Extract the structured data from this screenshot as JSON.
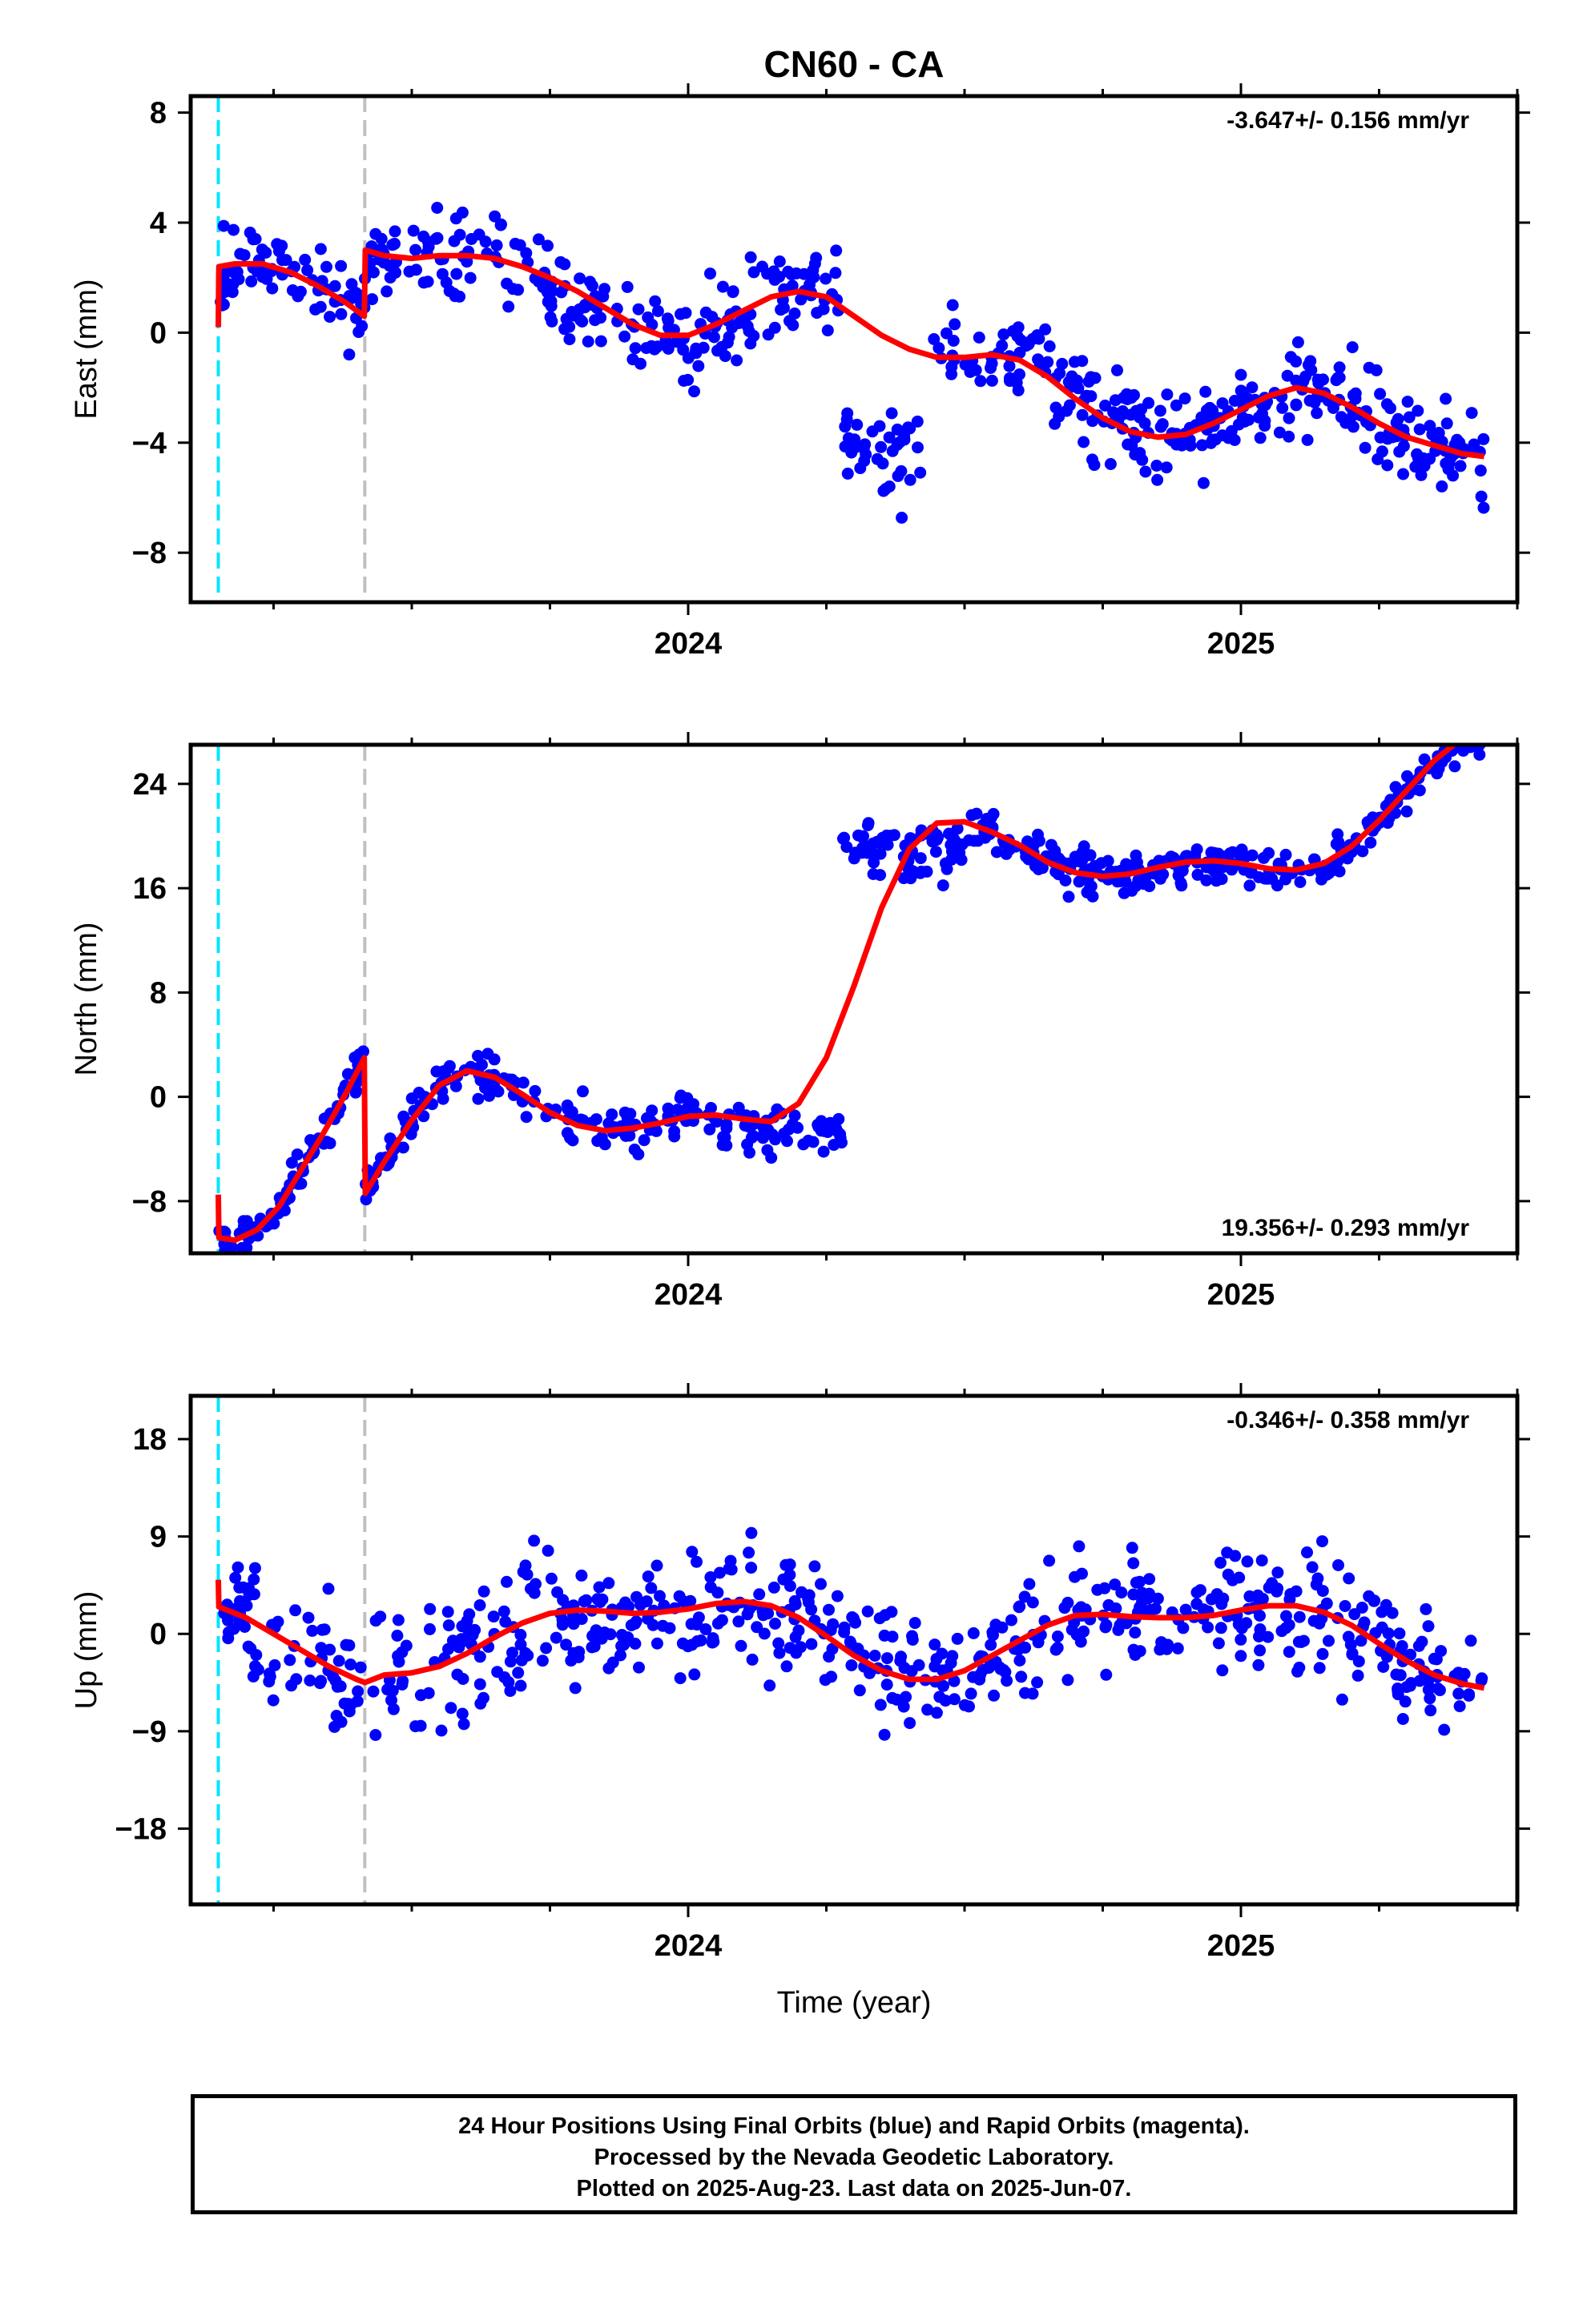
{
  "title": "CN60 - CA",
  "footer": {
    "line1": "24 Hour Positions Using Final Orbits (blue) and Rapid Orbits (magenta).",
    "line2": "Processed by the Nevada Geodetic Laboratory.",
    "line3": "Plotted on 2025-Aug-23. Last data on 2025-Jun-07."
  },
  "chart_data": [
    {
      "type": "scatter",
      "panel": "east",
      "ylabel": "East (mm)",
      "xlabel": "",
      "rate": "-3.647+/- 0.156 mm/yr",
      "rate_position": "top-right",
      "xlim": [
        2023.1,
        2025.5
      ],
      "ylim": [
        -9.8,
        8.6
      ],
      "yticks": [
        -8,
        -4,
        0,
        4,
        8
      ],
      "xticks": [
        2024,
        2025
      ],
      "xtick_labels": [
        "2024",
        "2025"
      ],
      "colors": {
        "points": "#0000ff",
        "model": "#ff0000"
      },
      "events": [
        {
          "x": 2023.15,
          "color": "#00e5ff",
          "style": "dashed"
        },
        {
          "x": 2023.415,
          "color": "#c0c0c0",
          "style": "dashed"
        }
      ],
      "model": {
        "x": [
          2023.15,
          2023.151,
          2023.18,
          2023.23,
          2023.28,
          2023.33,
          2023.38,
          2023.414,
          2023.416,
          2023.45,
          2023.5,
          2023.55,
          2023.6,
          2023.65,
          2023.7,
          2023.75,
          2023.8,
          2023.85,
          2023.9,
          2023.95,
          2024.0,
          2024.05,
          2024.1,
          2024.15,
          2024.2,
          2024.25,
          2024.3,
          2024.35,
          2024.4,
          2024.45,
          2024.5,
          2024.55,
          2024.6,
          2024.65,
          2024.7,
          2024.75,
          2024.8,
          2024.85,
          2024.9,
          2024.95,
          2025.0,
          2025.05,
          2025.1,
          2025.15,
          2025.2,
          2025.25,
          2025.3,
          2025.35,
          2025.4,
          2025.44
        ],
        "y": [
          0.2,
          2.4,
          2.5,
          2.5,
          2.2,
          1.7,
          1.1,
          0.6,
          3.0,
          2.8,
          2.7,
          2.8,
          2.8,
          2.7,
          2.4,
          2.0,
          1.5,
          0.9,
          0.3,
          -0.1,
          -0.1,
          0.3,
          0.8,
          1.3,
          1.5,
          1.3,
          0.6,
          -0.1,
          -0.6,
          -0.9,
          -0.9,
          -0.8,
          -1.0,
          -1.6,
          -2.4,
          -3.1,
          -3.6,
          -3.8,
          -3.7,
          -3.3,
          -2.8,
          -2.3,
          -2.0,
          -2.2,
          -2.7,
          -3.3,
          -3.8,
          -4.1,
          -4.4,
          -4.5
        ]
      },
      "points": {
        "x": [],
        "y": []
      }
    },
    {
      "type": "scatter",
      "panel": "north",
      "ylabel": "North (mm)",
      "xlabel": "",
      "rate": "19.356+/- 0.293 mm/yr",
      "rate_position": "bottom-right",
      "xlim": [
        2023.1,
        2025.5
      ],
      "ylim": [
        -12,
        27
      ],
      "yticks": [
        -8,
        0,
        8,
        16,
        24
      ],
      "xticks": [
        2024,
        2025
      ],
      "xtick_labels": [
        "2024",
        "2025"
      ],
      "colors": {
        "points": "#0000ff",
        "model": "#ff0000"
      },
      "events": [
        {
          "x": 2023.15,
          "color": "#00e5ff",
          "style": "dashed"
        },
        {
          "x": 2023.415,
          "color": "#c0c0c0",
          "style": "dashed"
        }
      ],
      "model": {
        "x": [
          2023.15,
          2023.151,
          2023.18,
          2023.22,
          2023.26,
          2023.3,
          2023.34,
          2023.38,
          2023.414,
          2023.416,
          2023.45,
          2023.5,
          2023.55,
          2023.6,
          2023.65,
          2023.7,
          2023.75,
          2023.8,
          2023.85,
          2023.9,
          2023.95,
          2024.0,
          2024.05,
          2024.1,
          2024.15,
          2024.2,
          2024.25,
          2024.3,
          2024.35,
          2024.4,
          2024.45,
          2024.5,
          2024.55,
          2024.6,
          2024.65,
          2024.7,
          2024.75,
          2024.8,
          2024.85,
          2024.9,
          2024.95,
          2025.0,
          2025.05,
          2025.1,
          2025.15,
          2025.2,
          2025.25,
          2025.3,
          2025.35,
          2025.4
        ],
        "y": [
          -7.5,
          -10.8,
          -11.0,
          -10.2,
          -8.4,
          -5.6,
          -2.8,
          0.2,
          3.0,
          -7.4,
          -5.0,
          -1.8,
          0.9,
          2.0,
          1.5,
          0.2,
          -1.2,
          -2.2,
          -2.6,
          -2.4,
          -2.0,
          -1.5,
          -1.4,
          -1.7,
          -1.9,
          -0.5,
          3.0,
          8.5,
          14.5,
          19.0,
          21.0,
          21.1,
          20.3,
          19.3,
          18.0,
          17.2,
          16.9,
          17.1,
          17.6,
          18.0,
          18.1,
          17.9,
          17.5,
          17.4,
          17.9,
          19.2,
          21.2,
          23.5,
          25.8,
          27.5
        ]
      },
      "points": {
        "x": [],
        "y": []
      }
    },
    {
      "type": "scatter",
      "panel": "up",
      "ylabel": "Up (mm)",
      "xlabel": "Time (year)",
      "rate": "-0.346+/- 0.358 mm/yr",
      "rate_position": "top-right",
      "xlim": [
        2023.1,
        2025.5
      ],
      "ylim": [
        -25,
        22
      ],
      "yticks": [
        -18,
        -9,
        0,
        9,
        18
      ],
      "xticks": [
        2024,
        2025
      ],
      "xtick_labels": [
        "2024",
        "2025"
      ],
      "colors": {
        "points": "#0000ff",
        "model": "#ff0000"
      },
      "events": [
        {
          "x": 2023.15,
          "color": "#00e5ff",
          "style": "dashed"
        },
        {
          "x": 2023.415,
          "color": "#c0c0c0",
          "style": "dashed"
        }
      ],
      "model": {
        "x": [
          2023.15,
          2023.151,
          2023.2,
          2023.25,
          2023.3,
          2023.35,
          2023.4,
          2023.415,
          2023.45,
          2023.5,
          2023.55,
          2023.6,
          2023.65,
          2023.7,
          2023.75,
          2023.8,
          2023.85,
          2023.9,
          2023.95,
          2024.0,
          2024.05,
          2024.1,
          2024.15,
          2024.2,
          2024.25,
          2024.3,
          2024.35,
          2024.4,
          2024.45,
          2024.5,
          2024.55,
          2024.6,
          2024.65,
          2024.7,
          2024.75,
          2024.8,
          2024.85,
          2024.9,
          2024.95,
          2025.0,
          2025.05,
          2025.1,
          2025.15,
          2025.2,
          2025.25,
          2025.3,
          2025.35,
          2025.4,
          2025.44
        ],
        "y": [
          5.0,
          2.5,
          1.5,
          0.0,
          -1.5,
          -3.0,
          -4.2,
          -4.5,
          -3.8,
          -3.6,
          -3.0,
          -1.8,
          -0.3,
          1.0,
          1.9,
          2.2,
          2.1,
          1.9,
          2.0,
          2.3,
          2.8,
          3.0,
          2.6,
          1.5,
          -0.2,
          -2.0,
          -3.4,
          -4.2,
          -4.2,
          -3.4,
          -2.0,
          -0.6,
          0.8,
          1.7,
          1.8,
          1.6,
          1.5,
          1.5,
          1.7,
          2.2,
          2.6,
          2.6,
          2.0,
          0.8,
          -0.9,
          -2.5,
          -3.8,
          -4.6,
          -5.0
        ]
      },
      "points": {
        "x": [],
        "y": []
      }
    }
  ]
}
